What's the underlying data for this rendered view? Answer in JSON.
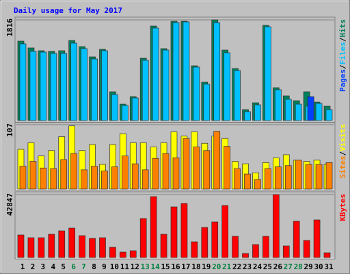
{
  "chart_data": [
    {
      "type": "bar",
      "title": "Daily usage for May 2017",
      "categories": [
        "1",
        "2",
        "3",
        "4",
        "5",
        "6",
        "7",
        "8",
        "9",
        "10",
        "11",
        "12",
        "13",
        "14",
        "15",
        "16",
        "17",
        "18",
        "19",
        "20",
        "21",
        "22",
        "23",
        "24",
        "25",
        "26",
        "27",
        "28",
        "29",
        "30",
        "31"
      ],
      "category_colors": [
        "#000000",
        "#000000",
        "#000000",
        "#000000",
        "#000000",
        "#008040",
        "#008040",
        "#000000",
        "#000000",
        "#000000",
        "#000000",
        "#000000",
        "#008040",
        "#008040",
        "#000000",
        "#000000",
        "#000000",
        "#000000",
        "#000000",
        "#008040",
        "#008040",
        "#000000",
        "#000000",
        "#000000",
        "#000000",
        "#000000",
        "#008040",
        "#008040",
        "#000000",
        "#000000",
        "#000000"
      ],
      "legend_separator": "/",
      "ylim": [
        0,
        1816
      ],
      "yticks": [
        1816
      ],
      "grid": true,
      "series": [
        {
          "name": "Hits",
          "color": "#00805c",
          "values": [
            1433,
            1310,
            1260,
            1248,
            1260,
            1445,
            1334,
            1149,
            1285,
            519,
            296,
            432,
            1124,
            1705,
            1297,
            1791,
            1791,
            988,
            692,
            1816,
            1272,
            939,
            198,
            321,
            1717,
            593,
            445,
            358,
            519,
            333,
            259
          ]
        },
        {
          "name": "Files",
          "color": "#00c0ff",
          "values": [
            1384,
            1248,
            1235,
            1211,
            1211,
            1396,
            1297,
            1112,
            1260,
            469,
            272,
            408,
            1087,
            1668,
            1272,
            1767,
            1779,
            964,
            655,
            1767,
            1223,
            902,
            161,
            284,
            1692,
            556,
            383,
            296,
            259,
            309,
            198
          ]
        },
        {
          "name": "Pages",
          "color": "#0040ff",
          "values": [
            0,
            0,
            0,
            0,
            0,
            0,
            0,
            0,
            0,
            0,
            0,
            0,
            0,
            0,
            0,
            0,
            0,
            0,
            0,
            0,
            0,
            0,
            0,
            0,
            0,
            0,
            0,
            0,
            432,
            0,
            0
          ]
        }
      ]
    },
    {
      "type": "bar",
      "ylim": [
        0,
        107
      ],
      "yticks": [
        107
      ],
      "grid": true,
      "series": [
        {
          "name": "Visits",
          "color": "#ffff00",
          "values": [
            66,
            77,
            55,
            64,
            87,
            105,
            64,
            74,
            41,
            74,
            92,
            77,
            77,
            70,
            77,
            95,
            88,
            95,
            76,
            88,
            84,
            46,
            42,
            27,
            44,
            52,
            57,
            48,
            46,
            48,
            41
          ]
        },
        {
          "name": "Sites",
          "color": "#ff8000",
          "values": [
            38,
            46,
            35,
            34,
            49,
            59,
            32,
            38,
            30,
            37,
            55,
            42,
            32,
            51,
            59,
            52,
            84,
            70,
            64,
            96,
            71,
            34,
            25,
            16,
            34,
            37,
            39,
            48,
            41,
            41,
            44
          ]
        }
      ]
    },
    {
      "type": "bar",
      "ylim": [
        0,
        42847
      ],
      "yticks": [
        42847
      ],
      "grid": true,
      "series": [
        {
          "name": "KBytes",
          "color": "#ff0000",
          "values": [
            15369,
            13506,
            13506,
            15835,
            18164,
            20027,
            14904,
            13040,
            13506,
            6986,
            3726,
            4657,
            26547,
            41450,
            15835,
            34464,
            36793,
            10712,
            20493,
            24219,
            35396,
            14438,
            2794,
            8849,
            14438,
            42847,
            7917,
            24684,
            11643,
            25616,
            3260
          ]
        }
      ]
    }
  ]
}
